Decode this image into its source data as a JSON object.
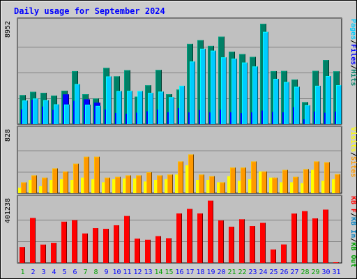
{
  "colors": {
    "pages": "#00ccff",
    "hits": "#008066",
    "files": "#0000ff",
    "sites": "#ff9900",
    "visits": "#ffff00",
    "kbf": "#ff0000",
    "kbin": "#0080c0",
    "kbout": "#00a000",
    "title": "#0000ff",
    "background": "#cccccc",
    "plot_bg": "#c0c0c0",
    "day_weekday": "#0000ff",
    "day_weekend": "#00a000"
  },
  "chart_data": {
    "type": "bar",
    "title": "Daily usage for September 2024",
    "categories": [
      "1",
      "2",
      "3",
      "4",
      "5",
      "6",
      "7",
      "8",
      "9",
      "10",
      "11",
      "12",
      "13",
      "14",
      "15",
      "16",
      "17",
      "18",
      "19",
      "20",
      "21",
      "22",
      "23",
      "24",
      "25",
      "26",
      "27",
      "28",
      "29",
      "30",
      "31"
    ],
    "weekend_days": [
      "1",
      "7",
      "8",
      "14",
      "15",
      "21",
      "22",
      "28",
      "29"
    ],
    "panels": [
      {
        "id": "top",
        "ymax": 8952,
        "ymax_label": "8952",
        "legend": [
          "Pages",
          "/",
          "Files",
          "/",
          "Hits"
        ],
        "legend_colors": [
          "pages",
          "black",
          "files",
          "black",
          "hits"
        ],
        "series": [
          {
            "name": "Hits",
            "values": [
              2520,
              2800,
              2720,
              2480,
              2900,
              4600,
              2600,
              2220,
              4880,
              4150,
              4680,
              2390,
              3370,
              4700,
              2600,
              3000,
              6960,
              7290,
              6780,
              7590,
              6290,
              6080,
              5830,
              8700,
              4600,
              4610,
              3870,
              1910,
              4620,
              5560,
              4580
            ]
          },
          {
            "name": "Files",
            "values": [
              1280,
              2100,
              1520,
              1240,
              2580,
              2020,
              2150,
              1860,
              1260,
              960,
              900,
              990,
              1120,
              1260,
              1030,
              1380,
              1010,
              1220,
              1010,
              1250,
              1030,
              950,
              1010,
              1170,
              1060,
              1020,
              1460,
              410,
              1090,
              980,
              1080
            ]
          },
          {
            "name": "Pages",
            "values": [
              2050,
              2220,
              2080,
              1720,
              1700,
              3470,
              1690,
              1580,
              4140,
              2870,
              2880,
              2870,
              2710,
              2820,
              2340,
              3330,
              5430,
              6540,
              6370,
              5790,
              5680,
              5340,
              5000,
              8000,
              3930,
              3660,
              3240,
              1640,
              3330,
              4170,
              3380
            ]
          }
        ]
      },
      {
        "id": "middle",
        "ymax": 828,
        "ymax_label": "828",
        "legend": [
          "Visits",
          "/",
          "Sites"
        ],
        "legend_colors": [
          "visits",
          "black",
          "sites"
        ],
        "series": [
          {
            "name": "Visits",
            "values": [
              70,
              170,
              90,
              170,
              180,
              170,
              200,
              180,
              140,
              180,
              190,
              190,
              150,
              170,
              180,
              240,
              360,
              170,
              170,
              140,
              220,
              160,
              180,
              280,
              200,
              140,
              140,
              130,
              300,
              160,
              180
            ]
          },
          {
            "name": "Sites",
            "values": [
              140,
              230,
              200,
              320,
              280,
              380,
              470,
              470,
              200,
              210,
              230,
              230,
              270,
              230,
              240,
              410,
              500,
              240,
              220,
              140,
              330,
              330,
              410,
              280,
              200,
              300,
              210,
              310,
              410,
              400,
              245
            ]
          }
        ]
      },
      {
        "id": "bottom",
        "ymax": 401238,
        "ymax_label": "401238",
        "legend": [
          "KB F",
          "/",
          "KB In",
          "/",
          "KB Out"
        ],
        "legend_colors": [
          "kbf",
          "black",
          "kbin",
          "black",
          "kbout"
        ],
        "series": [
          {
            "name": "KB F",
            "values": [
              98000,
              278000,
              113000,
              124000,
              255000,
              264000,
              182000,
              215000,
              211000,
              233000,
              290000,
              150000,
              143000,
              166000,
              153000,
              306000,
              334000,
              306000,
              385000,
              262000,
              224000,
              270000,
              228000,
              248000,
              83000,
              114000,
              305000,
              320000,
              275000,
              330000,
              2000
            ]
          }
        ]
      }
    ]
  }
}
